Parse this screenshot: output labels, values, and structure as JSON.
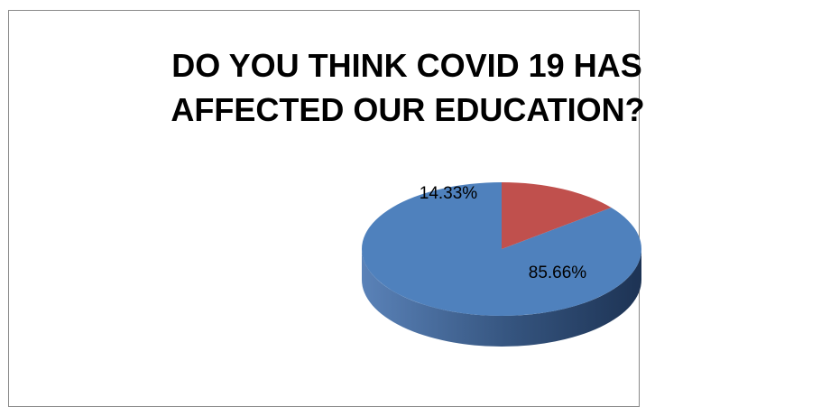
{
  "chart_data": {
    "type": "pie",
    "title": "DO YOU THINK COVID 19 HAS AFFECTED OUR EDUCATION?",
    "title_lines": [
      "DO YOU THINK COVID 19 HAS",
      "AFFECTED OUR EDUCATION?"
    ],
    "style": "3d",
    "slices": [
      {
        "label": "85.66%",
        "value": 85.66,
        "color": "#4F81BD"
      },
      {
        "label": "14.33%",
        "value": 14.33,
        "color": "#C0504D"
      }
    ]
  }
}
